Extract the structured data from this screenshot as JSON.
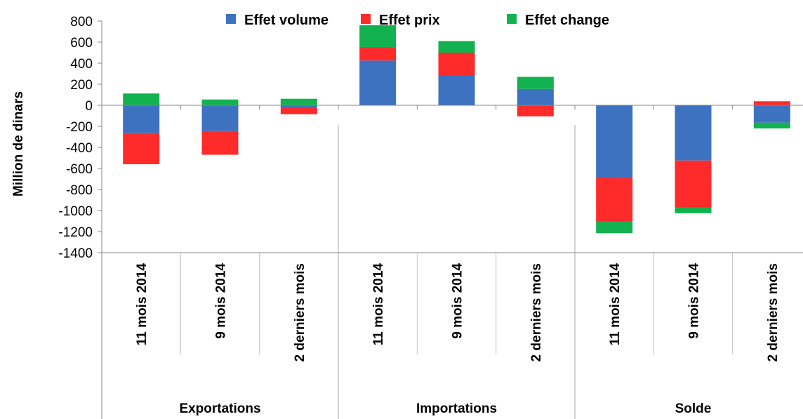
{
  "chart_data": {
    "type": "bar",
    "stacked": true,
    "groups": [
      {
        "label": "Exportations",
        "categories": [
          "11 mois 2014",
          "9 mois 2014",
          "2 derniers mois"
        ]
      },
      {
        "label": "Importations",
        "categories": [
          "11 mois 2014",
          "9 mois 2014",
          "2 derniers mois"
        ]
      },
      {
        "label": "Solde",
        "categories": [
          "11 mois 2014",
          "9 mois 2014",
          "2 derniers mois"
        ]
      }
    ],
    "series": [
      {
        "name": "Effet volume",
        "color": "#3D72C0",
        "values": [
          -265,
          -245,
          -20,
          425,
          280,
          155,
          -690,
          -525,
          -165
        ]
      },
      {
        "name": "Effet prix",
        "color": "#FF2B2B",
        "values": [
          -295,
          -225,
          -65,
          125,
          220,
          -105,
          -410,
          -445,
          38
        ]
      },
      {
        "name": "Effet change",
        "color": "#11B24F",
        "values": [
          112,
          55,
          62,
          210,
          110,
          115,
          -115,
          -55,
          -55
        ]
      }
    ],
    "ylabel": "Million de dinars",
    "ylim": [
      -1400,
      800
    ],
    "yticks": [
      800,
      600,
      400,
      200,
      0,
      -200,
      -400,
      -600,
      -800,
      -1000,
      -1200,
      -1400
    ],
    "legend": "top"
  }
}
